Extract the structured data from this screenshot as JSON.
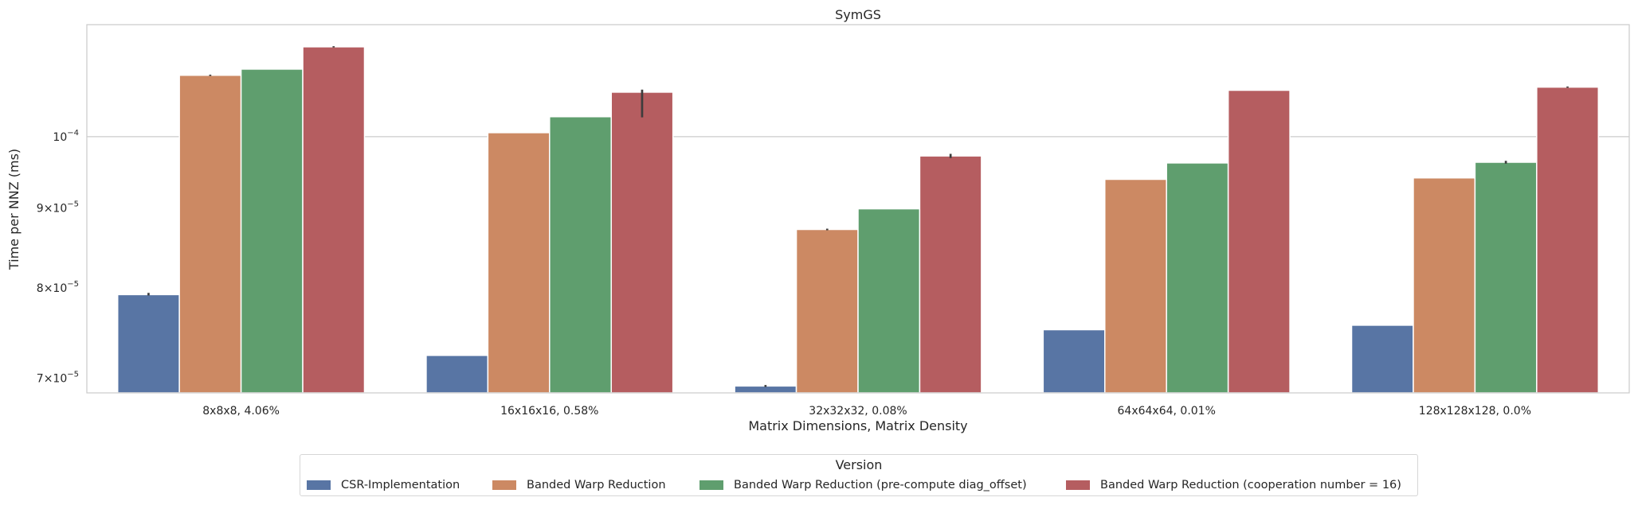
{
  "chart_data": {
    "type": "bar",
    "title": "SymGS",
    "xlabel": "Matrix Dimensions, Matrix Density",
    "ylabel": "Time per NNZ (ms)",
    "yscale": "log",
    "ylim": [
      6.85e-05,
      0.000118
    ],
    "grid": "horizontal",
    "categories": [
      "8x8x8, 4.06%",
      "16x16x16, 0.58%",
      "32x32x32, 0.08%",
      "64x64x64, 0.01%",
      "128x128x128, 0.0%"
    ],
    "y_ticks": [
      {
        "value": 7e-05,
        "base": "7",
        "exp": "−5"
      },
      {
        "value": 8e-05,
        "base": "8",
        "exp": "−5"
      },
      {
        "value": 9e-05,
        "base": "9",
        "exp": "−5"
      },
      {
        "value": 0.0001,
        "base": "",
        "exp": "−4"
      }
    ],
    "legend": {
      "title": "Version",
      "position": "bottom-center"
    },
    "series": [
      {
        "name": "CSR-Implementation",
        "color": "#5875a4",
        "values": [
          7.92e-05,
          7.24e-05,
          6.92e-05,
          7.52e-05,
          7.57e-05
        ],
        "error": [
          [
            7.91e-05,
            7.94e-05
          ],
          null,
          [
            6.91e-05,
            6.93e-05
          ],
          null,
          null
        ]
      },
      {
        "name": "Banded Warp Reduction",
        "color": "#cc8963",
        "values": [
          0.0001095,
          0.0001006,
          8.72e-05,
          9.39e-05,
          9.41e-05
        ],
        "error": [
          [
            0.0001094,
            0.0001096
          ],
          null,
          [
            8.71e-05,
            8.73e-05
          ],
          null,
          null
        ]
      },
      {
        "name": "Banded Warp Reduction (pre-compute diag_offset)",
        "color": "#5f9e6e",
        "values": [
          0.0001105,
          0.000103,
          8.99e-05,
          9.62e-05,
          9.63e-05
        ],
        "error": [
          null,
          null,
          null,
          null,
          [
            9.61e-05,
            9.65e-05
          ]
        ]
      },
      {
        "name": "Banded Warp Reduction (cooperation number = 16)",
        "color": "#b55d60",
        "values": [
          0.0001142,
          0.0001068,
          9.72e-05,
          0.0001071,
          0.0001076
        ],
        "error": [
          [
            0.0001141,
            0.0001143
          ],
          [
            0.0001029,
            0.0001072
          ],
          [
            9.69e-05,
            9.75e-05
          ],
          null,
          [
            0.0001075,
            0.0001077
          ]
        ]
      }
    ]
  }
}
